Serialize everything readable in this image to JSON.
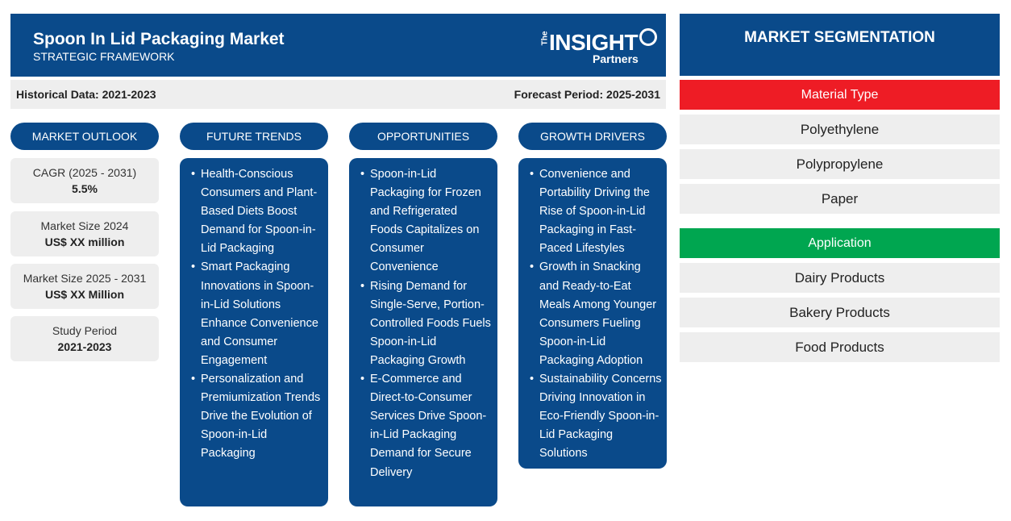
{
  "header": {
    "title": "Spoon In Lid Packaging Market",
    "subtitle": "STRATEGIC FRAMEWORK",
    "logo_the": "The",
    "logo_insight": "INSIGHT",
    "logo_partners": "Partners"
  },
  "periods": {
    "historical": "Historical Data: 2021-2023",
    "forecast": "Forecast Period: 2025-2031"
  },
  "columns": {
    "outlook": "MARKET OUTLOOK",
    "trends": "FUTURE TRENDS",
    "opportunities": "OPPORTUNITIES",
    "drivers": "GROWTH DRIVERS"
  },
  "outlook": [
    {
      "label": "CAGR (2025 - 2031)",
      "value": "5.5%"
    },
    {
      "label": "Market Size 2024",
      "value": "US$ XX million"
    },
    {
      "label": "Market Size 2025 - 2031",
      "value": "US$ XX Million"
    },
    {
      "label": "Study Period",
      "value": "2021-2023"
    }
  ],
  "trends": [
    "Health-Conscious Consumers and Plant-Based Diets Boost Demand for Spoon-in-Lid Packaging",
    "Smart Packaging Innovations in Spoon-in-Lid Solutions Enhance Convenience and Consumer Engagement",
    "Personalization and Premiumization Trends Drive the Evolution of Spoon-in-Lid Packaging"
  ],
  "opportunities": [
    "Spoon-in-Lid Packaging for Frozen and Refrigerated Foods Capitalizes on Consumer Convenience",
    "Rising Demand for Single-Serve, Portion-Controlled Foods Fuels Spoon-in-Lid Packaging Growth",
    "E-Commerce and Direct-to-Consumer Services Drive Spoon-in-Lid Packaging Demand for Secure Delivery"
  ],
  "drivers": [
    "Convenience and Portability Driving the Rise of Spoon-in-Lid Packaging in Fast-Paced Lifestyles",
    "Growth in Snacking and Ready-to-Eat Meals Among Younger Consumers Fueling Spoon-in-Lid Packaging Adoption",
    "Sustainability Concerns Driving Innovation in Eco-Friendly Spoon-in-Lid Packaging Solutions"
  ],
  "segmentation": {
    "title": "MARKET SEGMENTATION",
    "material": {
      "label": "Material Type",
      "color": "#ee1c25",
      "items": [
        "Polyethylene",
        "Polypropylene",
        "Paper"
      ]
    },
    "application": {
      "label": "Application",
      "color": "#00a650",
      "items": [
        "Dairy Products",
        "Bakery Products",
        "Food Products"
      ]
    }
  },
  "colors": {
    "navy": "#0a4a8a",
    "panel_grey": "#eeeeee"
  }
}
